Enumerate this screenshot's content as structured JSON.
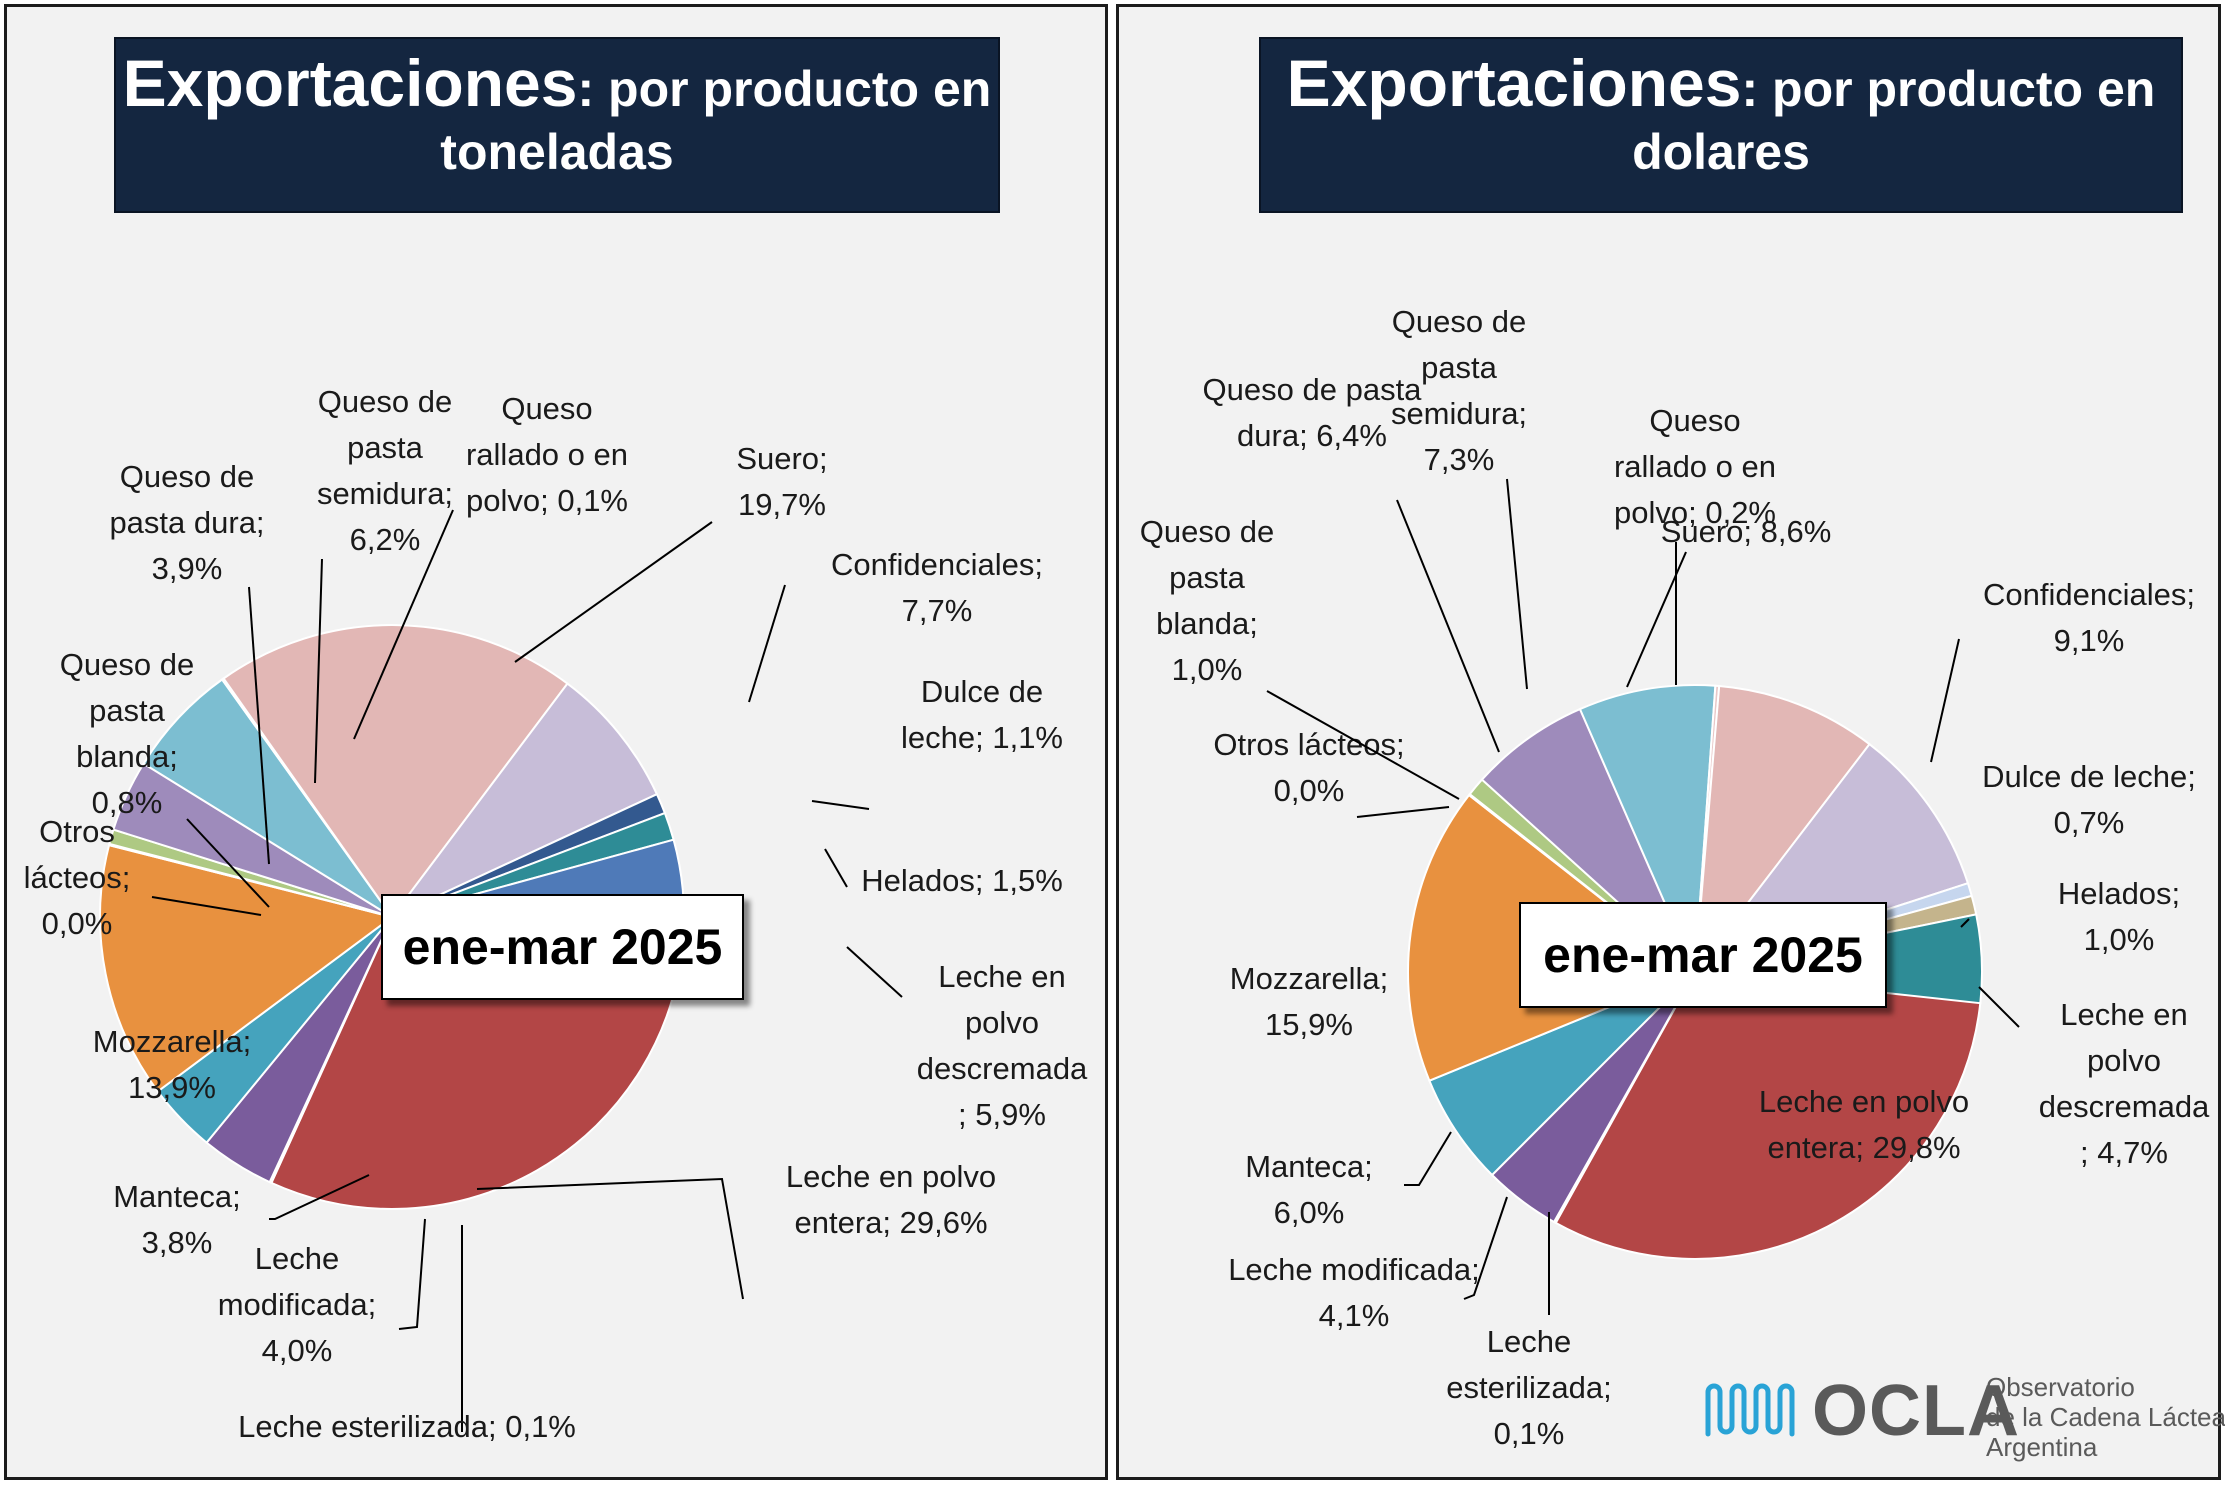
{
  "charts": [
    {
      "title_bold": "Exportaciones",
      "title_rest": ": por producto en",
      "title_line2": "toneladas",
      "period": "ene-mar 2025"
    },
    {
      "title_bold": "Exportaciones",
      "title_rest": ": por producto en",
      "title_line2": "dolares",
      "period": "ene-mar 2025"
    }
  ],
  "logo": {
    "name": "OCLA",
    "line1": "Observatorio",
    "line2": "de la Cadena Láctea",
    "line3": "Argentina",
    "color": "#29a3d6"
  },
  "chart_data": [
    {
      "type": "pie",
      "title": "Exportaciones: por producto en toneladas",
      "subtitle": "ene-mar 2025",
      "slices": [
        {
          "name": "Leche en polvo entera",
          "value": 29.6,
          "label": "Leche en polvo entera; 29,6%",
          "color": "#b34646"
        },
        {
          "name": "Leche esterilizada",
          "value": 0.1,
          "label": "Leche esterilizada; 0,1%",
          "color": "#c9c9c9"
        },
        {
          "name": "Leche modificada",
          "value": 4.0,
          "label": "Leche modificada; 4,0%",
          "color": "#7a5c9c"
        },
        {
          "name": "Manteca",
          "value": 3.8,
          "label": "Manteca; 3,8%",
          "color": "#45a3bd"
        },
        {
          "name": "Mozzarella",
          "value": 13.9,
          "label": "Mozzarella; 13,9%",
          "color": "#e8913f"
        },
        {
          "name": "Otros lácteos",
          "value": 0.0,
          "label": "Otros lácteos; 0,0%",
          "color": "#cfcfa8"
        },
        {
          "name": "Queso de pasta blanda",
          "value": 0.8,
          "label": "Queso de pasta blanda; 0,8%",
          "color": "#aec983"
        },
        {
          "name": "Queso de pasta dura",
          "value": 3.9,
          "label": "Queso de pasta dura; 3,9%",
          "color": "#9e8bbb"
        },
        {
          "name": "Queso de pasta semidura",
          "value": 6.2,
          "label": "Queso de pasta semidura; 6,2%",
          "color": "#7cbed1"
        },
        {
          "name": "Queso rallado o en polvo",
          "value": 0.1,
          "label": "Queso rallado o en polvo; 0,1%",
          "color": "#e8c8c8"
        },
        {
          "name": "Suero",
          "value": 19.7,
          "label": "Suero; 19,7%",
          "color": "#e2b7b5"
        },
        {
          "name": "Confidenciales",
          "value": 7.7,
          "label": "Confidenciales; 7,7%",
          "color": "#c7bdd8"
        },
        {
          "name": "Dulce de leche",
          "value": 1.1,
          "label": "Dulce de leche; 1,1%",
          "color": "#33598f"
        },
        {
          "name": "Helados",
          "value": 1.5,
          "label": "Helados; 1,5%",
          "color": "#2e8c96"
        },
        {
          "name": "Leche en polvo descremada",
          "value": 5.9,
          "label": "Leche en polvo descremada; 5,9%",
          "color": "#4f7ab8"
        }
      ]
    },
    {
      "type": "pie",
      "title": "Exportaciones: por producto en dolares",
      "subtitle": "ene-mar 2025",
      "slices": [
        {
          "name": "Leche en polvo entera",
          "value": 29.8,
          "label": "Leche en polvo entera; 29,8%",
          "color": "#b34646"
        },
        {
          "name": "Leche esterilizada",
          "value": 0.1,
          "label": "Leche esterilizada; 0,1%",
          "color": "#c9c9c9"
        },
        {
          "name": "Leche modificada",
          "value": 4.1,
          "label": "Leche modificada; 4,1%",
          "color": "#7a5c9c"
        },
        {
          "name": "Manteca",
          "value": 6.0,
          "label": "Manteca; 6,0%",
          "color": "#45a3bd"
        },
        {
          "name": "Mozzarella",
          "value": 15.9,
          "label": "Mozzarella; 15,9%",
          "color": "#e8913f"
        },
        {
          "name": "Otros lácteos",
          "value": 0.0,
          "label": "Otros lácteos; 0,0%",
          "color": "#cfcfa8"
        },
        {
          "name": "Queso de pasta blanda",
          "value": 1.0,
          "label": "Queso de pasta blanda; 1,0%",
          "color": "#aec983"
        },
        {
          "name": "Queso de pasta dura",
          "value": 6.4,
          "label": "Queso de pasta dura; 6,4%",
          "color": "#9e8bbb"
        },
        {
          "name": "Queso de pasta semidura",
          "value": 7.3,
          "label": "Queso de pasta semidura; 7,3%",
          "color": "#7cbed1"
        },
        {
          "name": "Queso rallado o en polvo",
          "value": 0.2,
          "label": "Queso rallado o en polvo; 0,2%",
          "color": "#e8c8c8"
        },
        {
          "name": "Suero",
          "value": 8.6,
          "label": "Suero; 8,6%",
          "color": "#e2b7b5"
        },
        {
          "name": "Confidenciales",
          "value": 9.1,
          "label": "Confidenciales; 9,1%",
          "color": "#c7bdd8"
        },
        {
          "name": "Dulce de leche",
          "value": 0.7,
          "label": "Dulce de leche; 0,7%",
          "color": "#c6d6ee"
        },
        {
          "name": "Helados",
          "value": 1.0,
          "label": "Helados; 1,0%",
          "color": "#c4b48c"
        },
        {
          "name": "Leche en polvo descremada",
          "value": 4.7,
          "label": "Leche en polvo descremada; 4,7%",
          "color": "#2e8c96"
        }
      ]
    }
  ]
}
